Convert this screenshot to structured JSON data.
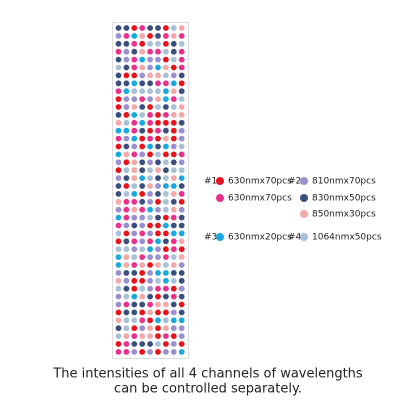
{
  "channels": [
    {
      "label": "#1",
      "items": [
        {
          "text": "630nmx70pcs",
          "color": "#e8141c"
        },
        {
          "text": "630nmx70pcs",
          "color": "#e8308c"
        }
      ]
    },
    {
      "label": "#2",
      "items": [
        {
          "text": "810nmx70pcs",
          "color": "#9a8fd0"
        },
        {
          "text": "830nmx50pcs",
          "color": "#3a4f80"
        },
        {
          "text": "850nmx30pcs",
          "color": "#f4a8a8"
        }
      ]
    },
    {
      "label": "#3",
      "items": [
        {
          "text": "630nmx20pcs",
          "color": "#1aa8e0"
        }
      ]
    },
    {
      "label": "#4",
      "items": [
        {
          "text": "1064nmx50pcs",
          "color": "#a8c0d8"
        }
      ]
    }
  ],
  "caption": [
    "The intensities of all 4 channels of wavelengths",
    "can be controlled separately."
  ]
}
